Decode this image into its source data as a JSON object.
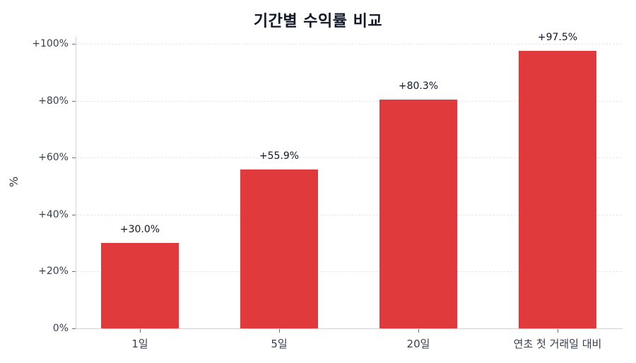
{
  "chart_data": {
    "type": "bar",
    "title": "기간별 수익률 비교",
    "xlabel": "",
    "ylabel": "%",
    "categories": [
      "1일",
      "5일",
      "20일",
      "연초 첫 거래일 대비"
    ],
    "values": [
      30.0,
      55.9,
      80.3,
      97.5
    ],
    "value_labels": [
      "+30.0%",
      "+55.9%",
      "+80.3%",
      "+97.5%"
    ],
    "ylim": [
      0,
      102
    ],
    "yticks": [
      0,
      20,
      40,
      60,
      80,
      100
    ],
    "ytick_labels": [
      "0%",
      "+20%",
      "+40%",
      "+60%",
      "+80%",
      "+100%"
    ],
    "grid": "horizontal dashed",
    "legend": null,
    "bar_color": "#e03a3c"
  }
}
